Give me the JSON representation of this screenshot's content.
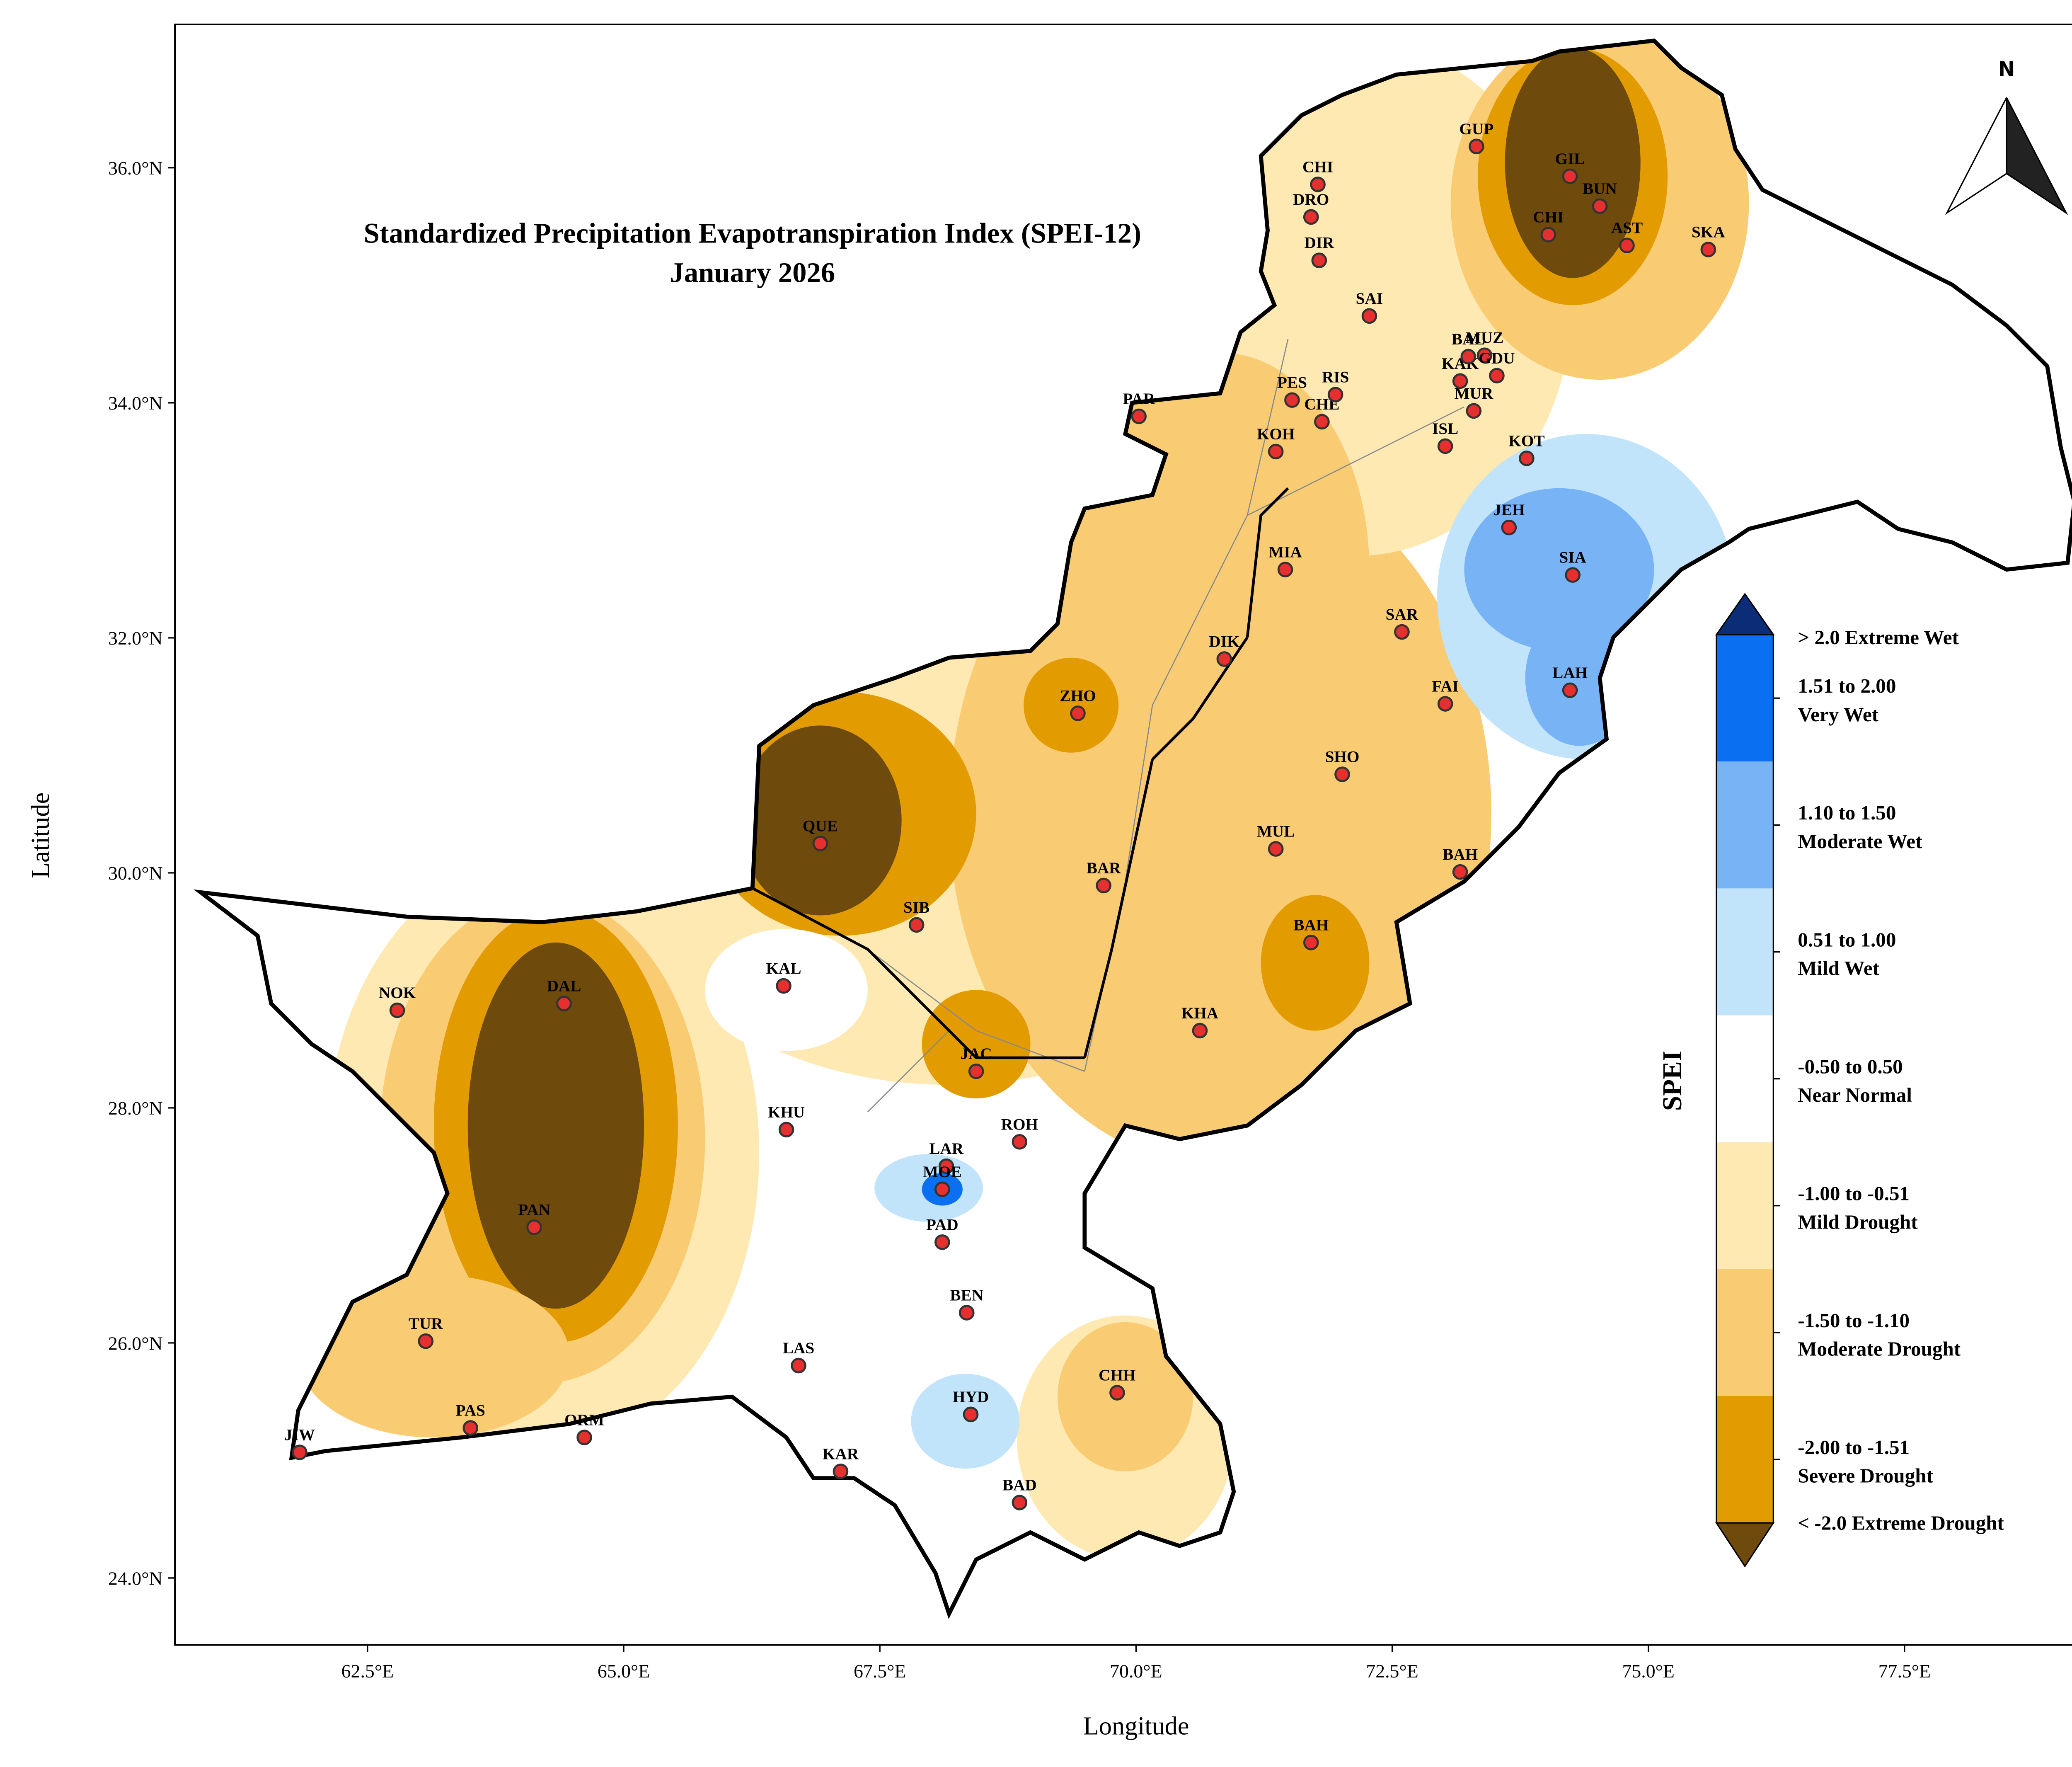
{
  "map": {
    "title": "Standardized Precipitation Evapotranspiration Index (SPEI-12)",
    "subtitle": "January 2026",
    "x_label": "Longitude",
    "y_label": "Latitude",
    "north": "N",
    "xlim": [
      60.62,
      79.25
    ],
    "ylim": [
      23.43,
      37.22
    ],
    "xticks": [
      {
        "value": 62.5,
        "label": "62.5°E"
      },
      {
        "value": 65,
        "label": "65.0°E"
      },
      {
        "value": 67.5,
        "label": "67.5°E"
      },
      {
        "value": 70,
        "label": "70.0°E"
      },
      {
        "value": 72.5,
        "label": "72.5°E"
      },
      {
        "value": 75,
        "label": "75.0°E"
      },
      {
        "value": 77.5,
        "label": "77.5°E"
      }
    ],
    "yticks": [
      {
        "value": 24,
        "label": "24.0°N"
      },
      {
        "value": 26,
        "label": "26.0°N"
      },
      {
        "value": 28,
        "label": "28.0°N"
      },
      {
        "value": 30,
        "label": "30.0°N"
      },
      {
        "value": 32,
        "label": "32.0°N"
      },
      {
        "value": 34,
        "label": "34.0°N"
      },
      {
        "value": 36,
        "label": "36.0°N"
      }
    ],
    "stations": [
      "NOK",
      "DAL",
      "PAN",
      "TUR",
      "PAS",
      "ORM",
      "JIW",
      "KAL",
      "KHU",
      "LAS",
      "KAR",
      "QUE",
      "SIB",
      "ZHO",
      "JAC",
      "LAR",
      "MOE",
      "PAD",
      "BEN",
      "HYD",
      "BAD",
      "CHH",
      "ROH",
      "KHA",
      "BAH",
      "BAR",
      "MUL",
      "DIK",
      "SHO",
      "BAH",
      "FAI",
      "LAH",
      "SIA",
      "JEH",
      "SAR",
      "MIA",
      "KOT",
      "ISL",
      "MUR",
      "CHE",
      "KOH",
      "PES",
      "RIS",
      "PAR",
      "KAK",
      "BAL",
      "MUZ",
      "GDU",
      "SAI",
      "DIR",
      "DRO",
      "CHI",
      "GUP",
      "GIL",
      "BUN",
      "CHI",
      "AST",
      "SKA"
    ],
    "legend": {
      "title": "SPEI",
      "top": {
        "label": "> 2.0 Extreme Wet",
        "color": "#0b2d78"
      },
      "bins": [
        {
          "label": [
            "1.51 to 2.00",
            "Very Wet"
          ],
          "color": "#0a6ff0"
        },
        {
          "label": [
            "1.10 to 1.50",
            "Moderate Wet"
          ],
          "color": "#78b3f5"
        },
        {
          "label": [
            "0.51 to 1.00",
            "Mild Wet"
          ],
          "color": "#c1e4fb"
        },
        {
          "label": [
            "-0.50 to 0.50",
            "Near Normal"
          ],
          "color": "#ffffff"
        },
        {
          "label": [
            "-1.00 to -0.51",
            "Mild Drought"
          ],
          "color": "#fde9b1"
        },
        {
          "label": [
            "-1.50 to -1.10",
            "Moderate Drought"
          ],
          "color": "#f9cb73"
        },
        {
          "label": [
            "-2.00 to -1.51",
            "Severe Drought"
          ],
          "color": "#e29b00"
        }
      ],
      "bottom": {
        "label": "< -2.0 Extreme Drought",
        "color": "#6e4a0c"
      }
    }
  }
}
